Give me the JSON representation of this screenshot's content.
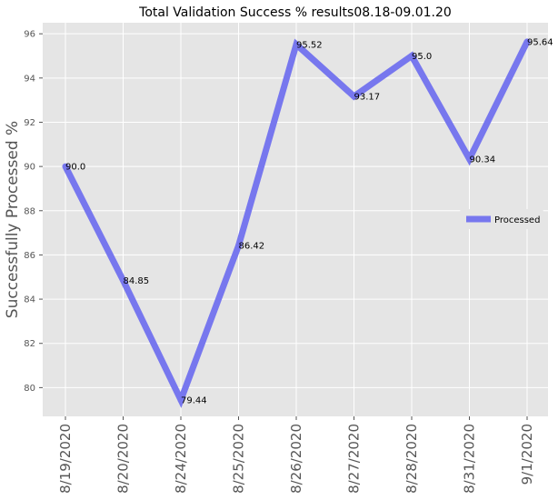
{
  "chart_data": {
    "type": "line",
    "title": "Total Validation Success % results08.18-09.01.20",
    "xlabel": "",
    "ylabel": "Successfully Processed %",
    "categories": [
      "8/19/2020",
      "8/20/2020",
      "8/24/2020",
      "8/25/2020",
      "8/26/2020",
      "8/27/2020",
      "8/28/2020",
      "8/31/2020",
      "9/1/2020"
    ],
    "series": [
      {
        "name": "Processed",
        "values": [
          90.0,
          84.85,
          79.44,
          86.42,
          95.52,
          93.17,
          95.0,
          90.34,
          95.64
        ],
        "labels": [
          "90.0",
          "84.85",
          "79.44",
          "86.42",
          "95.52",
          "93.17",
          "95.0",
          "90.34",
          "95.64"
        ],
        "color": "#7777ee"
      }
    ],
    "yticks": [
      80,
      82,
      84,
      86,
      88,
      90,
      92,
      94,
      96
    ],
    "ylim": [
      78.7,
      96.5
    ],
    "grid": true,
    "legend_position": "right",
    "background": "#e5e5e5"
  }
}
